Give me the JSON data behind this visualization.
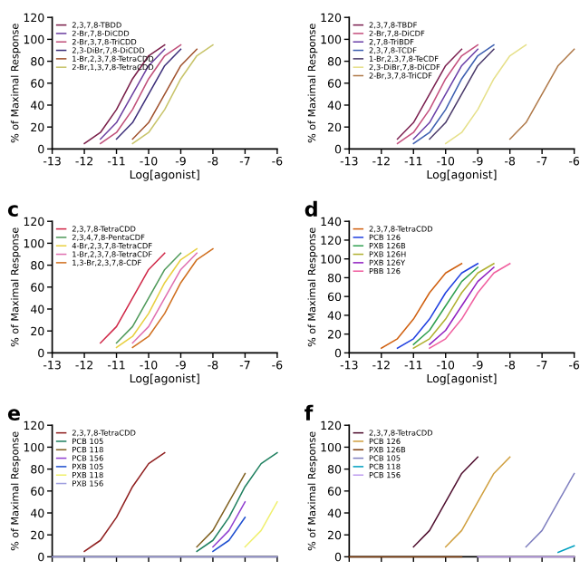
{
  "chart_data": [
    {
      "type": "line",
      "xlabel": "Log[agonist]",
      "ylabel": "% of Maximal Response",
      "legend": "top left",
      "line_style": "solid",
      "grid": false,
      "x": [
        -12,
        -11.5,
        -11,
        -10.5,
        -10,
        -9.5,
        -9,
        -8.5,
        -8
      ],
      "xlim": [
        -13,
        -6
      ],
      "xticks": [
        -13,
        -12,
        -11,
        -10,
        -9,
        -8,
        -7,
        -6
      ],
      "ylim": [
        0,
        120
      ],
      "yticks": [
        0,
        20,
        40,
        60,
        80,
        100,
        120
      ],
      "series": [
        {
          "name": "2,3,7,8-TBDD",
          "color": "#7a1f4a",
          "values": [
            5,
            15,
            36,
            64,
            85,
            95,
            null,
            null,
            null
          ]
        },
        {
          "name": "2-Br,7,8-DiCDD",
          "color": "#6b3fa0",
          "values": [
            null,
            9,
            24,
            50,
            76,
            91,
            null,
            null,
            null
          ]
        },
        {
          "name": "2-Br,3,7,8-TriCDD",
          "color": "#c0507a",
          "values": [
            null,
            5,
            15,
            36,
            64,
            85,
            95,
            null,
            null
          ]
        },
        {
          "name": "2,3-DiBr,7,8-DiCDD",
          "color": "#3d2f7a",
          "values": [
            null,
            null,
            9,
            24,
            50,
            76,
            91,
            null,
            null
          ]
        },
        {
          "name": "1-Br,2,3,7,8-TetraCDD",
          "color": "#a0522d",
          "values": [
            null,
            null,
            null,
            9,
            24,
            50,
            76,
            91,
            null
          ]
        },
        {
          "name": "2-Br,1,3,7,8-TetraCDD",
          "color": "#c8c46a",
          "values": [
            null,
            null,
            null,
            5,
            15,
            36,
            64,
            85,
            95
          ]
        }
      ]
    },
    {
      "type": "line",
      "xlabel": "Log[agonist]",
      "ylabel": "% of Maximal Response",
      "legend": "top left",
      "line_style": "solid",
      "grid": false,
      "x": [
        -11.5,
        -11,
        -10.5,
        -10,
        -9.5,
        -9,
        -8.5,
        -8,
        -7.5,
        -7,
        -6.5,
        -6
      ],
      "xlim": [
        -13,
        -6
      ],
      "xticks": [
        -13,
        -12,
        -11,
        -10,
        -9,
        -8,
        -7,
        -6
      ],
      "ylim": [
        0,
        120
      ],
      "yticks": [
        0,
        20,
        40,
        60,
        80,
        100,
        120
      ],
      "series": [
        {
          "name": "2,3,7,8-TBDF",
          "color": "#7b2050",
          "values": [
            9,
            24,
            50,
            76,
            91,
            null,
            null,
            null,
            null,
            null,
            null,
            null
          ]
        },
        {
          "name": "2-Br,7,8-DiCDF",
          "color": "#c4507e",
          "values": [
            5,
            15,
            36,
            64,
            85,
            95,
            null,
            null,
            null,
            null,
            null,
            null
          ]
        },
        {
          "name": "2,7,8-TriBDF",
          "color": "#6a40a8",
          "values": [
            null,
            9,
            24,
            50,
            76,
            91,
            null,
            null,
            null,
            null,
            null,
            null
          ]
        },
        {
          "name": "2,3,7,8-TCDF",
          "color": "#3d5fb0",
          "values": [
            null,
            5,
            15,
            36,
            64,
            85,
            95,
            null,
            null,
            null,
            null,
            null
          ]
        },
        {
          "name": "1-Br,2,3,7,8-TeCDF",
          "color": "#4a3a6a",
          "values": [
            null,
            null,
            9,
            24,
            50,
            76,
            91,
            null,
            null,
            null,
            null,
            null
          ]
        },
        {
          "name": "2,3-DiBr,7,8-DiCDF",
          "color": "#e6e08a",
          "values": [
            null,
            null,
            null,
            5,
            15,
            36,
            64,
            85,
            95,
            null,
            null,
            null
          ]
        },
        {
          "name": "2-Br,3,7,8-TriCDF",
          "color": "#b07a4a",
          "values": [
            null,
            null,
            null,
            null,
            null,
            null,
            null,
            9,
            24,
            50,
            76,
            91
          ]
        }
      ]
    },
    {
      "type": "line",
      "title": "c",
      "xlabel": "Log[agonist]",
      "ylabel": "% of Maximal Response",
      "legend": "top left",
      "line_style": "solid",
      "grid": false,
      "x": [
        -11.5,
        -11,
        -10.5,
        -10,
        -9.5,
        -9,
        -8.5,
        -8
      ],
      "xlim": [
        -13,
        -6
      ],
      "xticks": [
        -13,
        -12,
        -11,
        -10,
        -9,
        -8,
        -7,
        -6
      ],
      "ylim": [
        0,
        120
      ],
      "yticks": [
        0,
        20,
        40,
        60,
        80,
        100,
        120
      ],
      "series": [
        {
          "name": "2,3,7,8-TetraCDD",
          "color": "#d02848",
          "values": [
            9,
            24,
            50,
            76,
            91,
            null,
            null,
            null
          ]
        },
        {
          "name": "2,3,4,7,8-PentaCDF",
          "color": "#4f9a5a",
          "values": [
            null,
            9,
            24,
            50,
            76,
            91,
            null,
            null
          ]
        },
        {
          "name": "4-Br,2,3,7,8-TetraCDF",
          "color": "#e8d040",
          "values": [
            null,
            5,
            15,
            36,
            64,
            85,
            95,
            null
          ]
        },
        {
          "name": "1-Br,2,3,7,8-TetraCDF",
          "color": "#e070b0",
          "values": [
            null,
            null,
            9,
            24,
            50,
            76,
            91,
            null
          ]
        },
        {
          "name": "1,3-Br,2,3,7,8-CDF",
          "color": "#d07020",
          "values": [
            null,
            null,
            5,
            15,
            36,
            64,
            85,
            95
          ]
        }
      ]
    },
    {
      "type": "line",
      "title": "d",
      "xlabel": "Log[agonist]",
      "ylabel": "% of Maximal Response",
      "legend": "top left",
      "line_style": "solid",
      "grid": false,
      "x": [
        -12,
        -11.5,
        -11,
        -10.5,
        -10,
        -9.5,
        -9,
        -8.5,
        -8
      ],
      "xlim": [
        -13,
        -6
      ],
      "xticks": [
        -13,
        -12,
        -11,
        -10,
        -9,
        -8,
        -7,
        -6
      ],
      "ylim": [
        0,
        140
      ],
      "yticks": [
        0,
        20,
        40,
        60,
        80,
        100,
        120,
        140
      ],
      "series": [
        {
          "name": "2,3,7,8-TetraCDD",
          "color": "#d06010",
          "values": [
            5,
            15,
            36,
            64,
            85,
            95,
            null,
            null,
            null
          ]
        },
        {
          "name": "PCB 126",
          "color": "#2040e0",
          "values": [
            null,
            5,
            15,
            36,
            64,
            85,
            95,
            null,
            null
          ]
        },
        {
          "name": "PXB 126B",
          "color": "#30a050",
          "values": [
            null,
            null,
            9,
            24,
            50,
            76,
            91,
            null,
            null
          ]
        },
        {
          "name": "PXB 126H",
          "color": "#b0b030",
          "values": [
            null,
            null,
            5,
            15,
            36,
            64,
            85,
            95,
            null
          ]
        },
        {
          "name": "PXB 126Y",
          "color": "#9020c0",
          "values": [
            null,
            null,
            null,
            9,
            24,
            50,
            76,
            91,
            null
          ]
        },
        {
          "name": "PBB 126",
          "color": "#f060a0",
          "values": [
            null,
            null,
            null,
            5,
            15,
            36,
            64,
            85,
            95
          ]
        }
      ]
    },
    {
      "type": "line",
      "title": "e",
      "ylabel": "% of Maximal Response",
      "legend": "top left",
      "line_style": "solid",
      "grid": false,
      "tick_labels": "y",
      "x": [
        -13,
        -12.5,
        -12,
        -11.5,
        -11,
        -10.5,
        -10,
        -9.5,
        -9,
        -8.5,
        -8,
        -7.5,
        -7,
        -6.5,
        -6
      ],
      "xlim": [
        -13,
        -6
      ],
      "xticks": [
        -13,
        -12,
        -11,
        -10,
        -9,
        -8,
        -7,
        -6
      ],
      "ylim": [
        0,
        120
      ],
      "yticks": [
        0,
        20,
        40,
        60,
        80,
        100,
        120
      ],
      "series": [
        {
          "name": "2,3,7,8-TetraCDD",
          "color": "#902020",
          "values": [
            null,
            null,
            5,
            15,
            36,
            64,
            85,
            95,
            null,
            null,
            null,
            null,
            null,
            null,
            null
          ]
        },
        {
          "name": "PCB 105",
          "color": "#208060",
          "values": [
            null,
            null,
            null,
            null,
            null,
            null,
            null,
            null,
            null,
            5,
            15,
            36,
            64,
            85,
            95
          ]
        },
        {
          "name": "PCB 118",
          "color": "#806020",
          "values": [
            null,
            null,
            null,
            null,
            null,
            null,
            null,
            null,
            null,
            9,
            24,
            50,
            76,
            null,
            null
          ]
        },
        {
          "name": "PCB 156",
          "color": "#9040d0",
          "values": [
            null,
            null,
            null,
            null,
            null,
            null,
            null,
            null,
            null,
            null,
            9,
            24,
            50,
            null,
            null
          ]
        },
        {
          "name": "PXB 105",
          "color": "#2050d0",
          "values": [
            null,
            null,
            null,
            null,
            null,
            null,
            null,
            null,
            null,
            null,
            5,
            15,
            36,
            null,
            null
          ]
        },
        {
          "name": "PXB 118",
          "color": "#f0f070",
          "values": [
            null,
            null,
            null,
            null,
            null,
            null,
            null,
            null,
            null,
            null,
            null,
            null,
            9,
            24,
            50
          ]
        },
        {
          "name": "PXB 156",
          "color": "#a0a0e0",
          "values": [
            0,
            0,
            0,
            0,
            0,
            0,
            0,
            0,
            0,
            0,
            0,
            0,
            0,
            0,
            0
          ]
        }
      ]
    },
    {
      "type": "line",
      "title": "f",
      "ylabel": "% of Maximal Response",
      "legend": "top left",
      "line_style": "solid",
      "grid": false,
      "tick_labels": "y",
      "x": [
        -13,
        -12.5,
        -12,
        -11.5,
        -11,
        -10.5,
        -10,
        -9.5,
        -9,
        -8.5,
        -8,
        -7.5,
        -7,
        -6.5,
        -6
      ],
      "xlim": [
        -13,
        -6
      ],
      "xticks": [
        -13,
        -12,
        -11,
        -10,
        -9,
        -8,
        -7,
        -6
      ],
      "ylim": [
        0,
        120
      ],
      "yticks": [
        0,
        20,
        40,
        60,
        80,
        100,
        120
      ],
      "series": [
        {
          "name": "2,3,7,8-TetraCDD",
          "color": "#501030",
          "values": [
            null,
            null,
            null,
            null,
            9,
            24,
            50,
            76,
            91,
            null,
            null,
            null,
            null,
            null,
            null
          ]
        },
        {
          "name": "PCB 126",
          "color": "#d0a040",
          "values": [
            null,
            null,
            null,
            null,
            null,
            null,
            9,
            24,
            50,
            76,
            91,
            null,
            null,
            null,
            null
          ]
        },
        {
          "name": "PXB 126B",
          "color": "#804010",
          "values": [
            0,
            0,
            0,
            0,
            0,
            0,
            0,
            0,
            null,
            null,
            null,
            null,
            null,
            null,
            null
          ]
        },
        {
          "name": "PCB 105",
          "color": "#8080c0",
          "values": [
            null,
            null,
            null,
            null,
            null,
            null,
            null,
            null,
            null,
            null,
            null,
            9,
            24,
            50,
            76
          ]
        },
        {
          "name": "PCB 118",
          "color": "#00a0c0",
          "values": [
            null,
            null,
            null,
            null,
            null,
            null,
            null,
            null,
            null,
            null,
            null,
            null,
            null,
            4,
            10
          ]
        },
        {
          "name": "PCB 156",
          "color": "#c0a0f0",
          "values": [
            null,
            null,
            null,
            null,
            null,
            null,
            null,
            null,
            0,
            0,
            0,
            0,
            0,
            0,
            0
          ]
        }
      ]
    }
  ]
}
